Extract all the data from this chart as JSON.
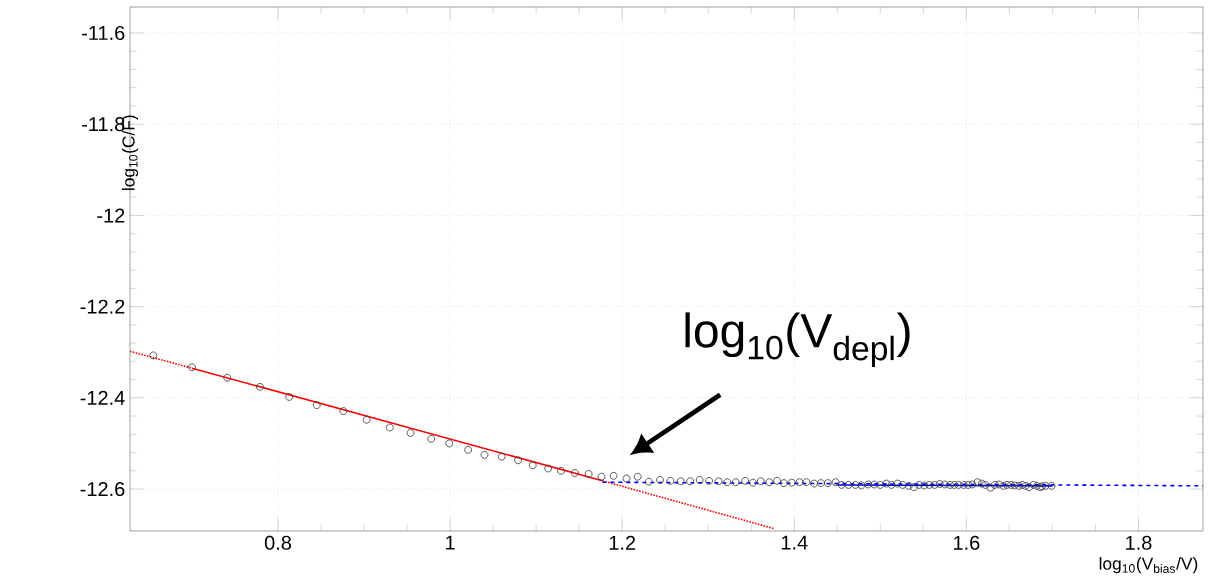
{
  "chart_data": {
    "type": "scatter",
    "xlabel": "log$_{10}$(V$_{bias}$/V)",
    "ylabel": "log$_{10}$(C/F)",
    "xlim": [
      0.628,
      1.875
    ],
    "ylim": [
      -12.692,
      -11.543
    ],
    "xticks": [
      0.8,
      1,
      1.2,
      1.4,
      1.6,
      1.8
    ],
    "yticks": [
      -12.6,
      -12.4,
      -12.2,
      -12,
      -11.8,
      -11.6
    ],
    "grid": true,
    "annotations": [
      "log$_{10}$(V$_{depl}$)"
    ],
    "series": [
      {
        "marker": "circle",
        "color": "#333333",
        "x": [
          0.655,
          0.7,
          0.741,
          0.779,
          0.813,
          0.845,
          0.876,
          0.903,
          0.93,
          0.954,
          0.978,
          0.999,
          1.021,
          1.04,
          1.06,
          1.079,
          1.096,
          1.114,
          1.129,
          1.145,
          1.161,
          1.176,
          1.19,
          1.205,
          1.218,
          1.231,
          1.244,
          1.256,
          1.268,
          1.279,
          1.29,
          1.301,
          1.312,
          1.322,
          1.332,
          1.343,
          1.352,
          1.361,
          1.371,
          1.38,
          1.388,
          1.397,
          1.406,
          1.414,
          1.423,
          1.431,
          1.439,
          1.448,
          1.455,
          1.463,
          1.471,
          1.478,
          1.486,
          1.493,
          1.5,
          1.507,
          1.513,
          1.52,
          1.526,
          1.533,
          1.539,
          1.545,
          1.551,
          1.557,
          1.563,
          1.569,
          1.575,
          1.581,
          1.586,
          1.591,
          1.597,
          1.602,
          1.607,
          1.613,
          1.618,
          1.622,
          1.628,
          1.633,
          1.638,
          1.643,
          1.647,
          1.652,
          1.656,
          1.661,
          1.665,
          1.669,
          1.673,
          1.678,
          1.682,
          1.686,
          1.688,
          1.692,
          1.699
        ],
        "values": [
          -12.307,
          -12.333,
          -12.356,
          -12.376,
          -12.398,
          -12.416,
          -12.429,
          -12.448,
          -12.465,
          -12.477,
          -12.49,
          -12.5,
          -12.514,
          -12.525,
          -12.529,
          -12.537,
          -12.548,
          -12.555,
          -12.56,
          -12.565,
          -12.567,
          -12.573,
          -12.571,
          -12.577,
          -12.573,
          -12.584,
          -12.58,
          -12.582,
          -12.583,
          -12.583,
          -12.58,
          -12.582,
          -12.583,
          -12.585,
          -12.585,
          -12.582,
          -12.586,
          -12.583,
          -12.585,
          -12.582,
          -12.587,
          -12.586,
          -12.585,
          -12.585,
          -12.588,
          -12.587,
          -12.587,
          -12.585,
          -12.591,
          -12.591,
          -12.591,
          -12.592,
          -12.59,
          -12.59,
          -12.591,
          -12.588,
          -12.591,
          -12.588,
          -12.591,
          -12.593,
          -12.596,
          -12.591,
          -12.592,
          -12.591,
          -12.591,
          -12.589,
          -12.59,
          -12.591,
          -12.591,
          -12.591,
          -12.591,
          -12.591,
          -12.59,
          -12.585,
          -12.588,
          -12.591,
          -12.597,
          -12.591,
          -12.59,
          -12.593,
          -12.591,
          -12.591,
          -12.592,
          -12.593,
          -12.591,
          -12.593,
          -12.596,
          -12.591,
          -12.593,
          -12.596,
          -12.594,
          -12.593,
          -12.593
        ]
      },
      {
        "type": "line",
        "line_style": "dotted",
        "color": "#ff0000",
        "x": [
          0.628,
          0.7
        ],
        "values": [
          -12.298,
          -12.335
        ]
      },
      {
        "type": "line",
        "line_style": "solid",
        "color": "#ff0000",
        "x": [
          0.7,
          1.177
        ],
        "values": [
          -12.335,
          -12.582
        ]
      },
      {
        "type": "line",
        "line_style": "dotted",
        "color": "#ff0000",
        "x": [
          1.177,
          1.377
        ],
        "values": [
          -12.582,
          -12.687
        ]
      },
      {
        "type": "line",
        "line_style": "dashed",
        "color": "#0000ff",
        "x": [
          1.177,
          1.875
        ],
        "values": [
          -12.585,
          -12.593
        ]
      },
      {
        "type": "line",
        "line_style": "solid",
        "color": "#0000ff",
        "x": [
          1.45,
          1.7
        ],
        "values": [
          -12.591,
          -12.593
        ]
      }
    ]
  }
}
